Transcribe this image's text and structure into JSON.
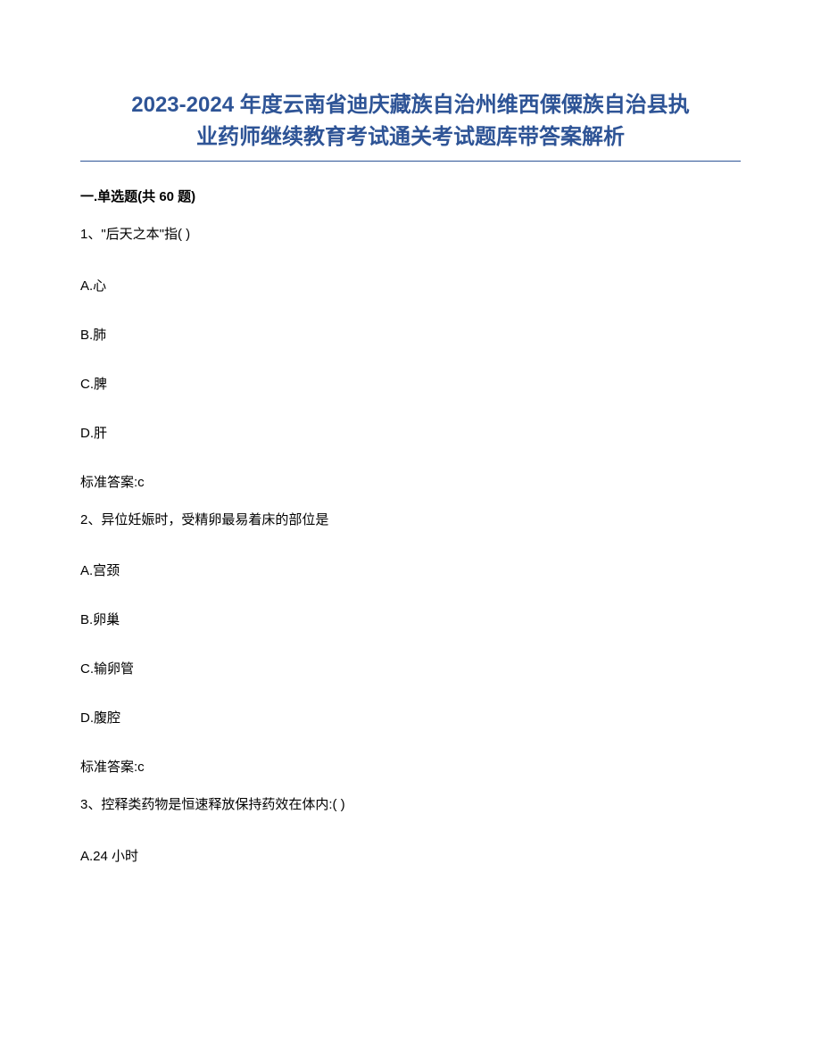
{
  "title_line1": "2023-2024 年度云南省迪庆藏族自治州维西傈僳族自治县执",
  "title_line2": "业药师继续教育考试通关考试题库带答案解析",
  "section_header": "一.单选题(共 60 题)",
  "questions": [
    {
      "stem": "1、\"后天之本\"指( )",
      "options": [
        "A.心",
        "B.肺",
        "C.脾",
        "D.肝"
      ],
      "answer": "标准答案:c"
    },
    {
      "stem": "2、异位妊娠时，受精卵最易着床的部位是",
      "options": [
        "A.宫颈",
        "B.卵巢",
        "C.输卵管",
        "D.腹腔"
      ],
      "answer": "标准答案:c"
    },
    {
      "stem": "3、控释类药物是恒速释放保持药效在体内:( )",
      "options": [
        "A.24 小时"
      ],
      "answer": null
    }
  ],
  "colors": {
    "title_color": "#2e5496",
    "underline_color": "#2e5496",
    "text_color": "#000000",
    "background": "#ffffff"
  },
  "typography": {
    "title_fontsize": 24,
    "body_fontsize": 15,
    "title_weight": "bold"
  }
}
